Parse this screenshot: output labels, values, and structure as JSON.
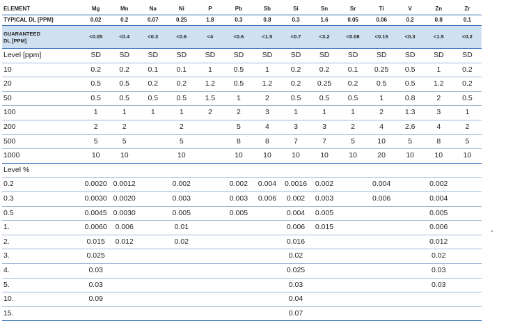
{
  "header": {
    "label": "ELEMENT",
    "elements": [
      "Mg",
      "Mn",
      "Na",
      "Ni",
      "P",
      "Pb",
      "Sb",
      "Si",
      "Sn",
      "Sr",
      "Ti",
      "V",
      "Zn",
      "Zr"
    ]
  },
  "typical": {
    "label": "TYPICAL DL [PPM]",
    "values": [
      "0.02",
      "0.2",
      "0.07",
      "0.25",
      "1.8",
      "0.3",
      "0.8",
      "0.3",
      "1.6",
      "0.05",
      "0.06",
      "0.2",
      "0.8",
      "0.1"
    ]
  },
  "guaranteed": {
    "label_line1": "GUARANTEED",
    "label_line2": "DL [PPM]",
    "values": [
      "<0.05",
      "<0.4",
      "<0.3",
      "<0.6",
      "<4",
      "<0.6",
      "<1.5",
      "<0.7",
      "<3.2",
      "<0.08",
      "<0.15",
      "<0.3",
      "<1.5",
      "<0.2"
    ]
  },
  "ppm_section": {
    "label": "Level [ppm]",
    "header_values": [
      "SD",
      "SD",
      "SD",
      "SD",
      "SD",
      "SD",
      "SD",
      "SD",
      "SD",
      "SD",
      "SD",
      "SD",
      "SD",
      "SD"
    ],
    "rows": [
      {
        "level": "10",
        "values": [
          "0.2",
          "0.2",
          "0.1",
          "0.1",
          "1",
          "0.5",
          "1",
          "0.2",
          "0.2",
          "0.1",
          "0.25",
          "0.5",
          "1",
          "0.2"
        ]
      },
      {
        "level": "20",
        "values": [
          "0.5",
          "0.5",
          "0.2",
          "0.2",
          "1.2",
          "0.5",
          "1.2",
          "0.2",
          "0.25",
          "0.2",
          "0.5",
          "0.5",
          "1.2",
          "0.2"
        ]
      },
      {
        "level": "50",
        "values": [
          "0.5",
          "0.5",
          "0.5",
          "0.5",
          "1.5",
          "1",
          "2",
          "0.5",
          "0.5",
          "0.5",
          "1",
          "0.8",
          "2",
          "0.5"
        ]
      },
      {
        "level": "100",
        "values": [
          "1",
          "1",
          "1",
          "1",
          "2",
          "2",
          "3",
          "1",
          "1",
          "1",
          "2",
          "1.3",
          "3",
          "1"
        ]
      },
      {
        "level": "200",
        "values": [
          "2",
          "2",
          "",
          "2",
          "",
          "5",
          "4",
          "3",
          "3",
          "2",
          "4",
          "2.6",
          "4",
          "2"
        ]
      },
      {
        "level": "500",
        "values": [
          "5",
          "5",
          "",
          "5",
          "",
          "8",
          "8",
          "7",
          "7",
          "5",
          "10",
          "5",
          "8",
          "5"
        ]
      },
      {
        "level": "1000",
        "values": [
          "10",
          "10",
          "",
          "10",
          "",
          "10",
          "10",
          "10",
          "10",
          "10",
          "20",
          "10",
          "10",
          "10"
        ]
      }
    ]
  },
  "pct_section": {
    "label": "Level %",
    "rows": [
      {
        "level": "0.2",
        "values": [
          "0.0020",
          "0.0012",
          "",
          "0.002",
          "",
          "0.002",
          "0.004",
          "0.0016",
          "0.002",
          "",
          "0.004",
          "",
          "0.002",
          ""
        ]
      },
      {
        "level": "0.3",
        "values": [
          "0.0030",
          "0.0020",
          "",
          "0.003",
          "",
          "0.003",
          "0.006",
          "0.002",
          "0.003",
          "",
          "0.006",
          "",
          "0.004",
          ""
        ]
      },
      {
        "level": "0.5",
        "values": [
          "0.0045",
          "0.0030",
          "",
          "0.005",
          "",
          "0.005",
          "",
          "0.004",
          "0.005",
          "",
          "",
          "",
          "0.005",
          ""
        ]
      },
      {
        "level": "1.",
        "values": [
          "0.0060",
          "0.006",
          "",
          "0.01",
          "",
          "",
          "",
          "0.006",
          "0.015",
          "",
          "",
          "",
          "0.006",
          ""
        ]
      },
      {
        "level": "2.",
        "values": [
          "0.015",
          "0.012",
          "",
          "0.02",
          "",
          "",
          "",
          "0.016",
          "",
          "",
          "",
          "",
          "0.012",
          ""
        ]
      },
      {
        "level": "3.",
        "values": [
          "0.025",
          "",
          "",
          "",
          "",
          "",
          "",
          "0.02",
          "",
          "",
          "",
          "",
          "0.02",
          ""
        ]
      },
      {
        "level": "4.",
        "values": [
          "0.03",
          "",
          "",
          "",
          "",
          "",
          "",
          "0.025",
          "",
          "",
          "",
          "",
          "0.03",
          ""
        ]
      },
      {
        "level": "5.",
        "values": [
          "0.03",
          "",
          "",
          "",
          "",
          "",
          "",
          "0.03",
          "",
          "",
          "",
          "",
          "0.03",
          ""
        ]
      },
      {
        "level": "10.",
        "values": [
          "0.09",
          "",
          "",
          "",
          "",
          "",
          "",
          "0.04",
          "",
          "",
          "",
          "",
          "",
          ""
        ]
      },
      {
        "level": "15.",
        "values": [
          "",
          "",
          "",
          "",
          "",
          "",
          "",
          "0.07",
          "",
          "",
          "",
          "",
          "",
          ""
        ]
      }
    ]
  }
}
